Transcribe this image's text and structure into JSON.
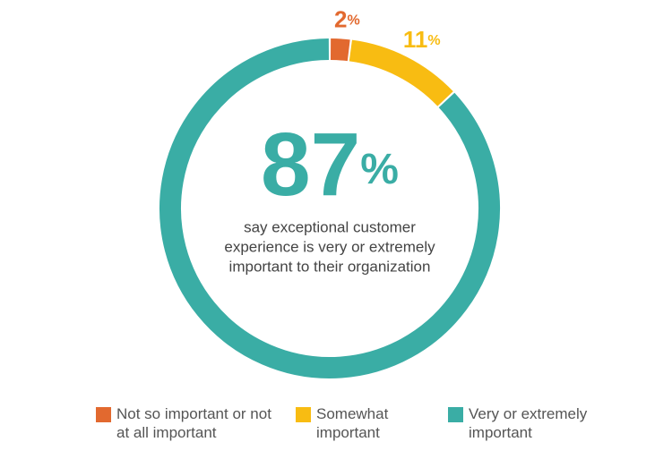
{
  "chart_data": {
    "type": "donut",
    "categories": [
      "Not so important or not at all important",
      "Somewhat important",
      "Very or extremely important"
    ],
    "values": [
      2,
      11,
      87
    ],
    "value_labels": [
      "2%",
      "11%",
      "87%"
    ],
    "colors": [
      "#e2692f",
      "#f8bc12",
      "#3aada5"
    ],
    "annotation": [
      "say exceptional customer",
      "experience is very or extremely",
      "important to their organization"
    ]
  }
}
